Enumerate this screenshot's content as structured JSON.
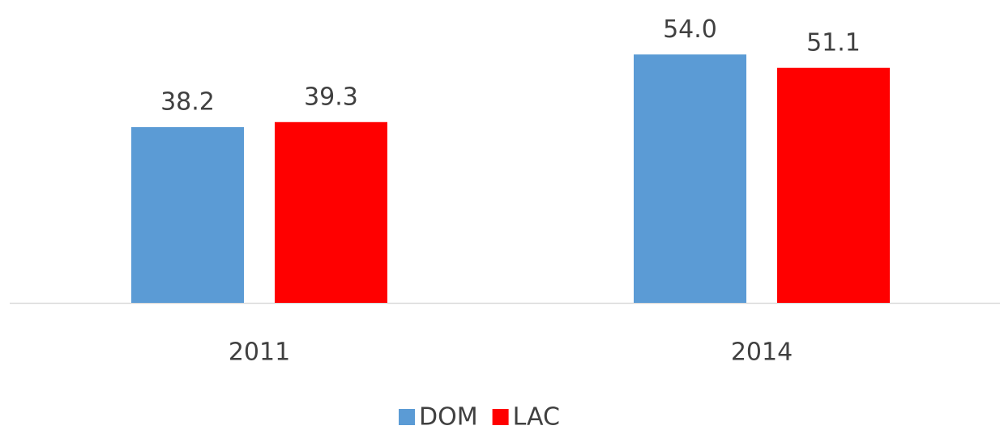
{
  "chart_data": {
    "type": "bar",
    "categories": [
      "2011",
      "2014"
    ],
    "series": [
      {
        "name": "DOM",
        "color": "#5b9bd5",
        "values": [
          38.2,
          54.0
        ],
        "value_labels": [
          "38.2",
          "54.0"
        ]
      },
      {
        "name": "LAC",
        "color": "#ff0000",
        "values": [
          39.3,
          51.1
        ],
        "value_labels": [
          "39.3",
          "51.1"
        ]
      }
    ],
    "legend": "bottom"
  }
}
